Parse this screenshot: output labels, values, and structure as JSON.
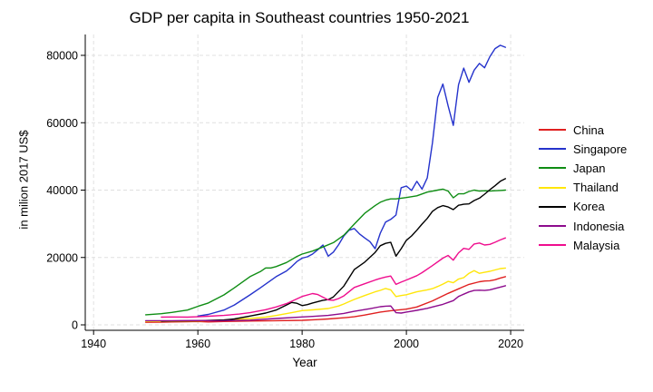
{
  "page": {
    "background": "#ffffff"
  },
  "chart_data": {
    "type": "line",
    "title": "GDP per capita in Southeast countries 1950-2021",
    "xlabel": "Year",
    "ylabel": "in milion 2017 US$",
    "xticks": [
      1940,
      1960,
      1980,
      2000,
      2020
    ],
    "yticks": [
      0,
      20000,
      40000,
      60000,
      80000
    ],
    "xlim": [
      1938.4,
      2022.6
    ],
    "ylim": [
      -3000,
      86200
    ],
    "grid": {
      "show": true,
      "style": "dashed",
      "color": "#e0e0e0"
    },
    "axis_color": "#000000",
    "legend_position": "right-outside",
    "series": [
      {
        "name": "China",
        "color": "#e02020",
        "points": [
          [
            1950,
            750
          ],
          [
            1953,
            800
          ],
          [
            1955,
            860
          ],
          [
            1958,
            950
          ],
          [
            1960,
            1000
          ],
          [
            1962,
            870
          ],
          [
            1965,
            1000
          ],
          [
            1970,
            1120
          ],
          [
            1975,
            1250
          ],
          [
            1980,
            1350
          ],
          [
            1983,
            1550
          ],
          [
            1985,
            1750
          ],
          [
            1988,
            2100
          ],
          [
            1990,
            2400
          ],
          [
            1992,
            2900
          ],
          [
            1995,
            3800
          ],
          [
            1997,
            4200
          ],
          [
            2000,
            4650
          ],
          [
            2002,
            5300
          ],
          [
            2005,
            7100
          ],
          [
            2008,
            9350
          ],
          [
            2010,
            10700
          ],
          [
            2012,
            12000
          ],
          [
            2014,
            12800
          ],
          [
            2015,
            13000
          ],
          [
            2016,
            13100
          ],
          [
            2017,
            13400
          ],
          [
            2018,
            13900
          ],
          [
            2019,
            14300
          ]
        ]
      },
      {
        "name": "Singapore",
        "color": "#2533cc",
        "points": [
          [
            1960,
            2600
          ],
          [
            1962,
            3100
          ],
          [
            1965,
            4400
          ],
          [
            1967,
            5900
          ],
          [
            1970,
            8900
          ],
          [
            1972,
            11000
          ],
          [
            1975,
            14300
          ],
          [
            1977,
            16000
          ],
          [
            1978,
            17300
          ],
          [
            1979,
            18800
          ],
          [
            1980,
            19800
          ],
          [
            1981,
            20200
          ],
          [
            1982,
            21000
          ],
          [
            1983,
            22300
          ],
          [
            1984,
            23700
          ],
          [
            1985,
            20400
          ],
          [
            1986,
            21600
          ],
          [
            1987,
            23800
          ],
          [
            1988,
            26400
          ],
          [
            1989,
            28100
          ],
          [
            1990,
            28600
          ],
          [
            1991,
            27000
          ],
          [
            1992,
            25800
          ],
          [
            1993,
            24700
          ],
          [
            1994,
            22600
          ],
          [
            1995,
            27200
          ],
          [
            1996,
            30500
          ],
          [
            1997,
            31300
          ],
          [
            1998,
            32600
          ],
          [
            1999,
            40700
          ],
          [
            2000,
            41200
          ],
          [
            2001,
            39900
          ],
          [
            2002,
            42600
          ],
          [
            2003,
            40300
          ],
          [
            2004,
            43600
          ],
          [
            2005,
            54000
          ],
          [
            2006,
            67500
          ],
          [
            2007,
            71500
          ],
          [
            2008,
            65000
          ],
          [
            2009,
            59200
          ],
          [
            2010,
            71300
          ],
          [
            2011,
            76200
          ],
          [
            2012,
            72000
          ],
          [
            2013,
            75600
          ],
          [
            2014,
            77600
          ],
          [
            2015,
            76300
          ],
          [
            2016,
            79600
          ],
          [
            2017,
            82000
          ],
          [
            2018,
            83000
          ],
          [
            2019,
            82400
          ]
        ]
      },
      {
        "name": "Japan",
        "color": "#0f8d14",
        "points": [
          [
            1950,
            3000
          ],
          [
            1953,
            3300
          ],
          [
            1955,
            3700
          ],
          [
            1958,
            4400
          ],
          [
            1960,
            5500
          ],
          [
            1962,
            6500
          ],
          [
            1965,
            8900
          ],
          [
            1967,
            11000
          ],
          [
            1970,
            14300
          ],
          [
            1972,
            15800
          ],
          [
            1973,
            16900
          ],
          [
            1974,
            16900
          ],
          [
            1975,
            17300
          ],
          [
            1977,
            18500
          ],
          [
            1979,
            20300
          ],
          [
            1980,
            21000
          ],
          [
            1982,
            21900
          ],
          [
            1984,
            23100
          ],
          [
            1986,
            24400
          ],
          [
            1988,
            26600
          ],
          [
            1990,
            29900
          ],
          [
            1992,
            33100
          ],
          [
            1994,
            35400
          ],
          [
            1995,
            36400
          ],
          [
            1996,
            37000
          ],
          [
            1997,
            37400
          ],
          [
            1998,
            37400
          ],
          [
            2000,
            37800
          ],
          [
            2002,
            38300
          ],
          [
            2004,
            39400
          ],
          [
            2006,
            40000
          ],
          [
            2007,
            40300
          ],
          [
            2008,
            39700
          ],
          [
            2009,
            37700
          ],
          [
            2010,
            38900
          ],
          [
            2011,
            38900
          ],
          [
            2012,
            39600
          ],
          [
            2013,
            40000
          ],
          [
            2014,
            39700
          ],
          [
            2015,
            39800
          ],
          [
            2016,
            39700
          ],
          [
            2017,
            39800
          ],
          [
            2018,
            39900
          ],
          [
            2019,
            40000
          ]
        ]
      },
      {
        "name": "Thailand",
        "color": "#ffe60a",
        "points": [
          [
            1950,
            1000
          ],
          [
            1955,
            1080
          ],
          [
            1960,
            1150
          ],
          [
            1965,
            1430
          ],
          [
            1970,
            1890
          ],
          [
            1973,
            2300
          ],
          [
            1975,
            2780
          ],
          [
            1978,
            3600
          ],
          [
            1980,
            4230
          ],
          [
            1982,
            4450
          ],
          [
            1985,
            4850
          ],
          [
            1987,
            5600
          ],
          [
            1988,
            6200
          ],
          [
            1990,
            7540
          ],
          [
            1992,
            8700
          ],
          [
            1994,
            9800
          ],
          [
            1995,
            10230
          ],
          [
            1996,
            10800
          ],
          [
            1997,
            10400
          ],
          [
            1998,
            8400
          ],
          [
            1999,
            8700
          ],
          [
            2000,
            8950
          ],
          [
            2002,
            9800
          ],
          [
            2004,
            10400
          ],
          [
            2005,
            10750
          ],
          [
            2006,
            11400
          ],
          [
            2007,
            12100
          ],
          [
            2008,
            12900
          ],
          [
            2009,
            12500
          ],
          [
            2010,
            13600
          ],
          [
            2011,
            14000
          ],
          [
            2012,
            15300
          ],
          [
            2013,
            16100
          ],
          [
            2014,
            15300
          ],
          [
            2015,
            15600
          ],
          [
            2016,
            15900
          ],
          [
            2017,
            16300
          ],
          [
            2018,
            16700
          ],
          [
            2019,
            16850
          ]
        ]
      },
      {
        "name": "Korea",
        "color": "#000000",
        "points": [
          [
            1953,
            1100
          ],
          [
            1955,
            1150
          ],
          [
            1960,
            1250
          ],
          [
            1965,
            1450
          ],
          [
            1967,
            1750
          ],
          [
            1970,
            2600
          ],
          [
            1973,
            3500
          ],
          [
            1975,
            4400
          ],
          [
            1977,
            5900
          ],
          [
            1978,
            6650
          ],
          [
            1979,
            6400
          ],
          [
            1980,
            5700
          ],
          [
            1981,
            6000
          ],
          [
            1982,
            6500
          ],
          [
            1984,
            7300
          ],
          [
            1985,
            7500
          ],
          [
            1986,
            8300
          ],
          [
            1988,
            11500
          ],
          [
            1990,
            16400
          ],
          [
            1992,
            18600
          ],
          [
            1994,
            21500
          ],
          [
            1995,
            23500
          ],
          [
            1996,
            24200
          ],
          [
            1997,
            24500
          ],
          [
            1998,
            20400
          ],
          [
            1999,
            22600
          ],
          [
            2000,
            25100
          ],
          [
            2001,
            26400
          ],
          [
            2002,
            28100
          ],
          [
            2003,
            29900
          ],
          [
            2004,
            31600
          ],
          [
            2005,
            33700
          ],
          [
            2006,
            34800
          ],
          [
            2007,
            35400
          ],
          [
            2008,
            35000
          ],
          [
            2009,
            34200
          ],
          [
            2010,
            35500
          ],
          [
            2011,
            35800
          ],
          [
            2012,
            35900
          ],
          [
            2013,
            36900
          ],
          [
            2014,
            37600
          ],
          [
            2015,
            38800
          ],
          [
            2016,
            40100
          ],
          [
            2017,
            41300
          ],
          [
            2018,
            42600
          ],
          [
            2019,
            43400
          ]
        ]
      },
      {
        "name": "Indonesia",
        "color": "#8d0b8d",
        "points": [
          [
            1950,
            1200
          ],
          [
            1955,
            1250
          ],
          [
            1960,
            1280
          ],
          [
            1963,
            1200
          ],
          [
            1965,
            1250
          ],
          [
            1970,
            1400
          ],
          [
            1975,
            1890
          ],
          [
            1980,
            2340
          ],
          [
            1982,
            2500
          ],
          [
            1985,
            2800
          ],
          [
            1988,
            3400
          ],
          [
            1990,
            4000
          ],
          [
            1993,
            4800
          ],
          [
            1995,
            5400
          ],
          [
            1996,
            5550
          ],
          [
            1997,
            5600
          ],
          [
            1998,
            3600
          ],
          [
            1999,
            3500
          ],
          [
            2000,
            3800
          ],
          [
            2002,
            4300
          ],
          [
            2004,
            4900
          ],
          [
            2005,
            5300
          ],
          [
            2007,
            6100
          ],
          [
            2008,
            6650
          ],
          [
            2009,
            7200
          ],
          [
            2010,
            8430
          ],
          [
            2011,
            9100
          ],
          [
            2012,
            9780
          ],
          [
            2013,
            10200
          ],
          [
            2014,
            10300
          ],
          [
            2015,
            10200
          ],
          [
            2016,
            10400
          ],
          [
            2017,
            10800
          ],
          [
            2018,
            11200
          ],
          [
            2019,
            11600
          ]
        ]
      },
      {
        "name": "Malaysia",
        "color": "#ef0e8e",
        "points": [
          [
            1953,
            2300
          ],
          [
            1955,
            2350
          ],
          [
            1958,
            2300
          ],
          [
            1960,
            2400
          ],
          [
            1962,
            2550
          ],
          [
            1965,
            2800
          ],
          [
            1968,
            3200
          ],
          [
            1970,
            3600
          ],
          [
            1973,
            4500
          ],
          [
            1975,
            5300
          ],
          [
            1977,
            6300
          ],
          [
            1980,
            8430
          ],
          [
            1982,
            9300
          ],
          [
            1983,
            9000
          ],
          [
            1985,
            7400
          ],
          [
            1986,
            7300
          ],
          [
            1987,
            7800
          ],
          [
            1988,
            8600
          ],
          [
            1990,
            11100
          ],
          [
            1992,
            12200
          ],
          [
            1994,
            13300
          ],
          [
            1995,
            13800
          ],
          [
            1996,
            14200
          ],
          [
            1997,
            14500
          ],
          [
            1998,
            12000
          ],
          [
            1999,
            12700
          ],
          [
            2000,
            13300
          ],
          [
            2002,
            14600
          ],
          [
            2003,
            15500
          ],
          [
            2005,
            17600
          ],
          [
            2007,
            19800
          ],
          [
            2008,
            20600
          ],
          [
            2009,
            19200
          ],
          [
            2010,
            21400
          ],
          [
            2011,
            22700
          ],
          [
            2012,
            22400
          ],
          [
            2013,
            24000
          ],
          [
            2014,
            24300
          ],
          [
            2015,
            23700
          ],
          [
            2016,
            23900
          ],
          [
            2017,
            24500
          ],
          [
            2018,
            25200
          ],
          [
            2019,
            25800
          ]
        ]
      }
    ]
  }
}
